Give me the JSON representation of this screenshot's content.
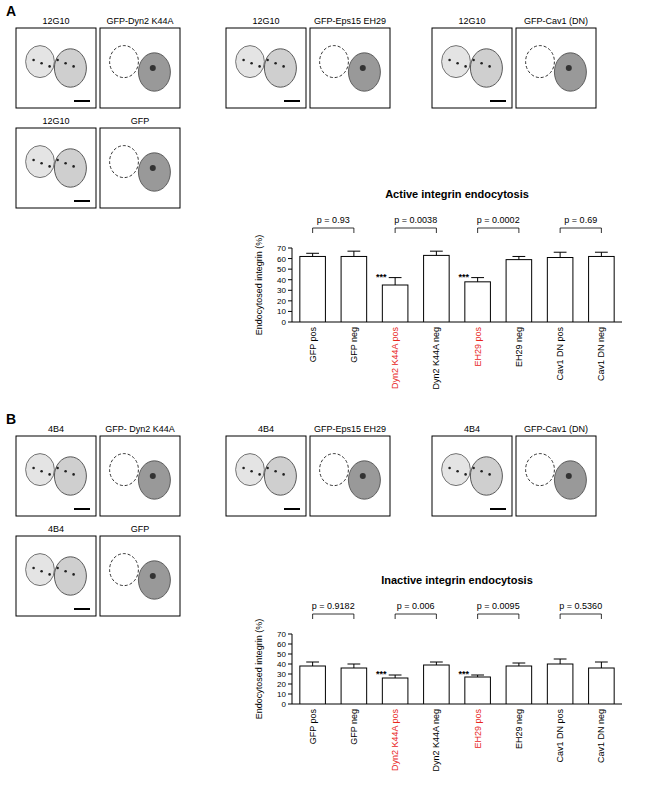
{
  "figure": {
    "panels": [
      {
        "label": "A",
        "images": [
          {
            "stain": "12G10",
            "gfp": "GFP-Dyn2 K44A"
          },
          {
            "stain": "12G10",
            "gfp": "GFP-Eps15 EH29"
          },
          {
            "stain": "12G10",
            "gfp": "GFP-Cav1 (DN)"
          },
          {
            "stain": "12G10",
            "gfp": "GFP"
          }
        ]
      },
      {
        "label": "B",
        "images": [
          {
            "stain": "4B4",
            "gfp": "GFP- Dyn2 K44A"
          },
          {
            "stain": "4B4",
            "gfp": "GFP-Eps15 EH29"
          },
          {
            "stain": "4B4",
            "gfp": "GFP-Cav1 (DN)"
          },
          {
            "stain": "4B4",
            "gfp": "GFP"
          }
        ]
      }
    ]
  },
  "chart_data": [
    {
      "type": "bar",
      "title": "Active integrin endocytosis",
      "y_label": "Endocytosed integrin (%)",
      "categories": [
        "GFP pos",
        "GFP neg",
        "Dyn2 K44A pos",
        "Dyn2 K44A neg",
        "EH29 pos",
        "EH29 neg",
        "Cav1 DN pos",
        "Cav1 DN neg"
      ],
      "values": [
        62,
        62,
        35,
        63,
        38,
        59,
        61,
        62
      ],
      "errors": [
        3,
        5,
        7,
        4,
        4,
        3,
        5,
        4
      ],
      "significance": [
        null,
        null,
        "***",
        null,
        "***",
        null,
        null,
        null
      ],
      "annotations": [
        "p = 0.93",
        "p = 0.0038",
        "p = 0.0002",
        "p = 0.69"
      ],
      "color": "#ffffff",
      "ylim": [
        0,
        70
      ],
      "yticks": [
        0,
        10,
        20,
        30,
        40,
        50,
        60,
        70
      ],
      "grid": false
    },
    {
      "type": "bar",
      "title": "Inactive integrin endocytosis",
      "y_label": "Endocytosed integrin (%)",
      "categories": [
        "GFP pos",
        "GFP neg",
        "Dyn2 K44A pos",
        "Dyn2 K44A neg",
        "EH29 pos",
        "EH29 neg",
        "Cav1 DN pos",
        "Cav1 DN neg"
      ],
      "values": [
        38,
        36,
        26,
        39,
        27,
        38,
        40,
        36
      ],
      "errors": [
        4,
        4,
        3,
        3,
        2,
        3,
        5,
        6
      ],
      "significance": [
        null,
        null,
        "***",
        null,
        "***",
        null,
        null,
        null
      ],
      "annotations": [
        "p = 0.9182",
        "p = 0.006",
        "p = 0.0095",
        "p = 0.5360"
      ],
      "color": "#ffffff",
      "ylim": [
        0,
        70
      ],
      "yticks": [
        0,
        10,
        20,
        30,
        40,
        50,
        60,
        70
      ],
      "grid": false
    }
  ]
}
